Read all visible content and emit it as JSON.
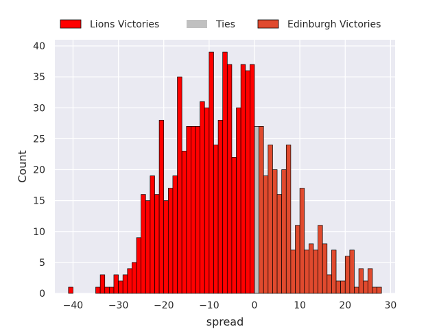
{
  "chart_data": {
    "type": "bar",
    "subtype": "histogram",
    "xlabel": "spread",
    "ylabel": "Count",
    "xlim": [
      -44,
      31
    ],
    "ylim": [
      0,
      41
    ],
    "xticks": [
      -40,
      -30,
      -20,
      -10,
      0,
      10,
      20,
      30
    ],
    "yticks": [
      0,
      5,
      10,
      15,
      20,
      25,
      30,
      35,
      40
    ],
    "grid": true,
    "legend_position": "top",
    "series": [
      {
        "name": "Lions Victories",
        "color": "#ff0000",
        "bins": [
          [
            -41,
            1
          ],
          [
            -35,
            1
          ],
          [
            -34,
            3
          ],
          [
            -33,
            1
          ],
          [
            -32,
            1
          ],
          [
            -31,
            3
          ],
          [
            -30,
            2
          ],
          [
            -29,
            3
          ],
          [
            -28,
            4
          ],
          [
            -27,
            5
          ],
          [
            -26,
            9
          ],
          [
            -25,
            16
          ],
          [
            -24,
            15
          ],
          [
            -23,
            19
          ],
          [
            -22,
            16
          ],
          [
            -21,
            28
          ],
          [
            -20,
            15
          ],
          [
            -19,
            17
          ],
          [
            -18,
            19
          ],
          [
            -17,
            35
          ],
          [
            -16,
            23
          ],
          [
            -15,
            27
          ],
          [
            -14,
            27
          ],
          [
            -13,
            27
          ],
          [
            -12,
            31
          ],
          [
            -11,
            30
          ],
          [
            -10,
            39
          ],
          [
            -9,
            24
          ],
          [
            -8,
            28
          ],
          [
            -7,
            39
          ],
          [
            -6,
            37
          ],
          [
            -5,
            22
          ],
          [
            -4,
            30
          ],
          [
            -3,
            37
          ],
          [
            -2,
            36
          ],
          [
            -1,
            37
          ]
        ]
      },
      {
        "name": "Ties",
        "color": "#c0c0c0",
        "bins": [
          [
            0,
            27
          ]
        ]
      },
      {
        "name": "Edinburgh Victories",
        "color": "#e04a2e",
        "bins": [
          [
            1,
            27
          ],
          [
            2,
            19
          ],
          [
            3,
            24
          ],
          [
            4,
            20
          ],
          [
            5,
            16
          ],
          [
            6,
            20
          ],
          [
            7,
            24
          ],
          [
            8,
            7
          ],
          [
            9,
            11
          ],
          [
            10,
            17
          ],
          [
            11,
            7
          ],
          [
            12,
            8
          ],
          [
            13,
            7
          ],
          [
            14,
            11
          ],
          [
            15,
            8
          ],
          [
            16,
            3
          ],
          [
            17,
            7
          ],
          [
            18,
            2
          ],
          [
            19,
            2
          ],
          [
            20,
            6
          ],
          [
            21,
            7
          ],
          [
            22,
            1
          ],
          [
            23,
            4
          ],
          [
            24,
            2
          ],
          [
            25,
            4
          ],
          [
            26,
            1
          ],
          [
            27,
            1
          ]
        ]
      }
    ]
  }
}
